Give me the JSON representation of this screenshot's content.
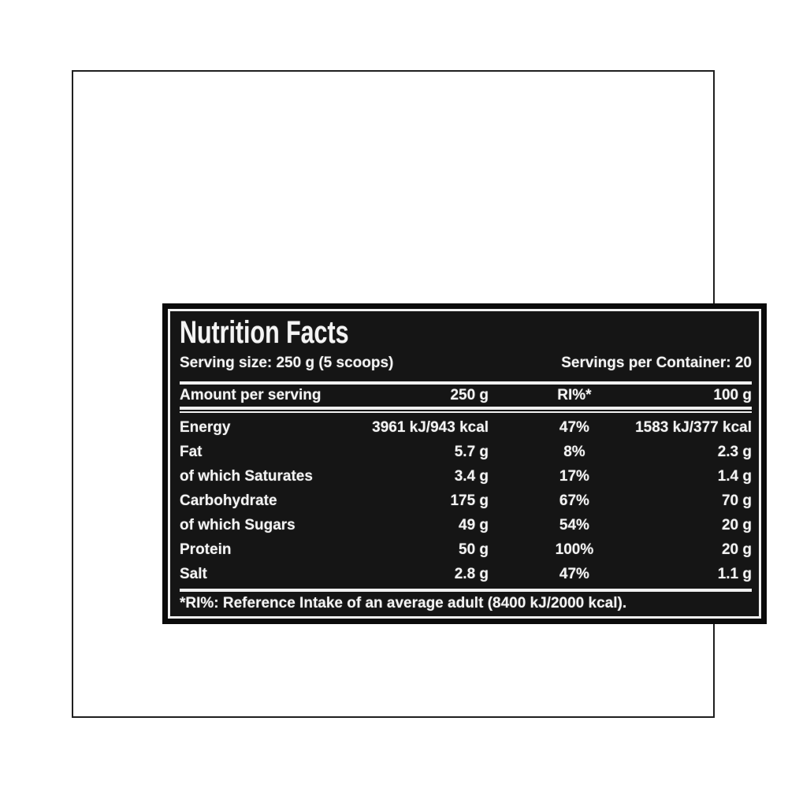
{
  "label": {
    "title": "Nutrition Facts",
    "serving_size": "Serving size: 250 g (5 scoops)",
    "servings_per_container": "Servings per Container: 20",
    "table": {
      "headers": [
        "Amount per serving",
        "250 g",
        "RI%*",
        "100 g"
      ],
      "rows": [
        {
          "name": "Energy",
          "per_serving": "3961 kJ/943 kcal",
          "ri": "47%",
          "per_100g": "1583 kJ/377 kcal"
        },
        {
          "name": "Fat",
          "per_serving": "5.7 g",
          "ri": "8%",
          "per_100g": "2.3 g"
        },
        {
          "name": "of which Saturates",
          "per_serving": "3.4 g",
          "ri": "17%",
          "per_100g": "1.4 g"
        },
        {
          "name": "Carbohydrate",
          "per_serving": "175 g",
          "ri": "67%",
          "per_100g": "70 g"
        },
        {
          "name": "of which Sugars",
          "per_serving": "49 g",
          "ri": "54%",
          "per_100g": "20 g"
        },
        {
          "name": "Protein",
          "per_serving": "50 g",
          "ri": "100%",
          "per_100g": "20 g"
        },
        {
          "name": "Salt",
          "per_serving": "2.8 g",
          "ri": "47%",
          "per_100g": "1.1 g"
        }
      ],
      "footnote": "*RI%: Reference Intake of an average adult (8400 kJ/2000 kcal)."
    },
    "colors": {
      "panel_background": "#151515",
      "panel_rim": "#0b0b0b",
      "frame_and_rules": "#f0f0f0",
      "text": "#f4f4f4",
      "page_border": "#1f1f1f",
      "page_background": "#ffffff"
    }
  }
}
